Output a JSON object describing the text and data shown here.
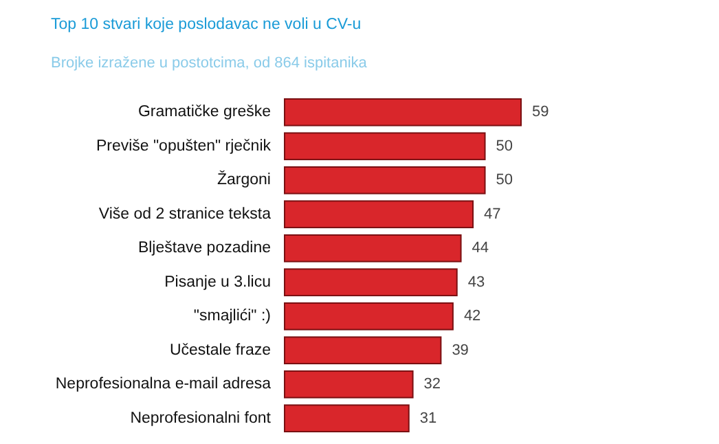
{
  "chart_data": {
    "type": "bar",
    "orientation": "horizontal",
    "title": "Top 10 stvari koje poslodavac ne voli u CV-u",
    "subtitle": "Brojke izražene u postotcima, od 864 ispitanika",
    "categories": [
      "Gramatičke greške",
      "Previše \"opušten\" rječnik",
      "Žargoni",
      "Više od 2 stranice teksta",
      "Blještave pozadine",
      "Pisanje u 3.licu",
      "\"smajlići\" :)",
      "Učestale fraze",
      "Neprofesionalna e-mail adresa",
      "Neprofesionalni font"
    ],
    "values": [
      59,
      50,
      50,
      47,
      44,
      43,
      42,
      39,
      32,
      31
    ],
    "color": "#d9262b",
    "data_labels": true
  }
}
